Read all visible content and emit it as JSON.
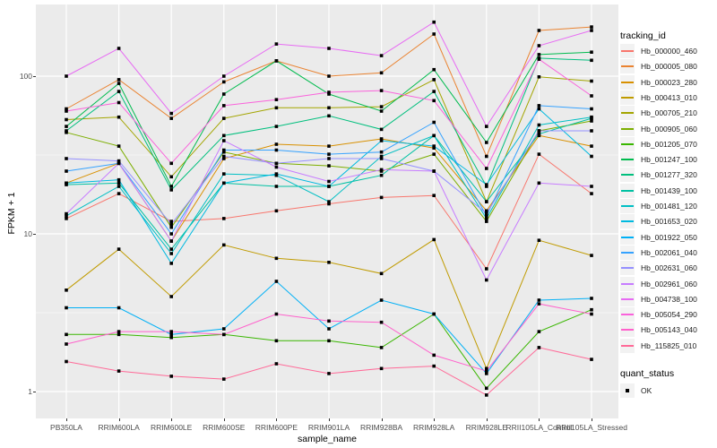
{
  "chart_data": {
    "type": "line",
    "title": "",
    "xlabel": "sample_name",
    "ylabel": "FPKM + 1",
    "y_scale": "log10",
    "ylim": [
      0.9,
      260
    ],
    "grid": {
      "visible": true,
      "major_values": [
        1,
        10,
        100
      ],
      "minor_values": [
        3.162,
        31.62
      ]
    },
    "yticks": [
      {
        "label": "1",
        "value": 1
      },
      {
        "label": "10",
        "value": 10
      },
      {
        "label": "100",
        "value": 100
      }
    ],
    "categories": [
      "PB350LA",
      "RRIM600LA",
      "RRIM600LE",
      "RRIM600SE",
      "RRIM600PE",
      "RRIM901LA",
      "RRIM928BA",
      "RRIM928LA",
      "RRIM928LE",
      "RRII105LA_Control",
      "RRII105LA_Stressed"
    ],
    "point_marker": {
      "shape": "square",
      "color": "#000000"
    },
    "series": [
      {
        "name": "Hb_000000_460",
        "color": "#F8766D",
        "values": [
          12.5,
          18,
          12,
          12.5,
          14,
          15.5,
          17,
          17.5,
          6,
          32,
          18
        ]
      },
      {
        "name": "Hb_000005_080",
        "color": "#EA8331",
        "values": [
          62,
          95,
          54,
          92,
          125,
          100,
          105,
          185,
          31,
          195,
          205
        ]
      },
      {
        "name": "Hb_000023_280",
        "color": "#D89000",
        "values": [
          21,
          28,
          9,
          30,
          37,
          36,
          40,
          35,
          14,
          42,
          36
        ]
      },
      {
        "name": "Hb_000413_010",
        "color": "#C09B00",
        "values": [
          4.4,
          8,
          4,
          8.5,
          7,
          6.6,
          5.6,
          9.2,
          1.4,
          9.1,
          7.3
        ]
      },
      {
        "name": "Hb_000705_210",
        "color": "#A3A500",
        "values": [
          53,
          55,
          23,
          54,
          63,
          63,
          64,
          95,
          16,
          99,
          93
        ]
      },
      {
        "name": "Hb_000905_060",
        "color": "#7CAE00",
        "values": [
          44,
          36,
          11,
          33,
          28,
          27,
          25,
          32,
          12,
          45,
          52
        ]
      },
      {
        "name": "Hb_001205_070",
        "color": "#39B600",
        "values": [
          2.3,
          2.3,
          2.2,
          2.3,
          2.1,
          2.1,
          1.9,
          3.1,
          1.05,
          2.4,
          3.3
        ]
      },
      {
        "name": "Hb_001247_100",
        "color": "#00BB4E",
        "values": [
          48,
          90,
          20,
          77,
          125,
          77,
          60,
          110,
          38,
          137,
          142
        ]
      },
      {
        "name": "Hb_001277_320",
        "color": "#00BF7D",
        "values": [
          45,
          80,
          19,
          42,
          48,
          56,
          46,
          80,
          20,
          130,
          126
        ]
      },
      {
        "name": "Hb_001439_100",
        "color": "#00C1A3",
        "values": [
          20.5,
          21,
          8,
          21,
          20,
          20,
          23.5,
          42,
          16,
          43,
          54
        ]
      },
      {
        "name": "Hb_001481_120",
        "color": "#00BFC4",
        "values": [
          13,
          20,
          7.5,
          24,
          23.5,
          16,
          31,
          42,
          12.5,
          49,
          55
        ]
      },
      {
        "name": "Hb_001653_020",
        "color": "#00BAE0",
        "values": [
          21,
          22,
          6.5,
          21,
          24,
          20,
          39,
          36,
          20.5,
          62,
          31
        ]
      },
      {
        "name": "Hb_001922_050",
        "color": "#00B0F6",
        "values": [
          3.4,
          3.4,
          2.3,
          2.5,
          5.0,
          2.5,
          3.8,
          3.1,
          1.3,
          3.8,
          3.9
        ]
      },
      {
        "name": "Hb_002061_040",
        "color": "#35A2FF",
        "values": [
          25,
          28,
          10,
          34,
          34,
          32,
          33,
          51,
          13,
          65,
          62
        ]
      },
      {
        "name": "Hb_002631_060",
        "color": "#9590FF",
        "values": [
          30,
          29,
          11.5,
          31,
          28,
          30,
          30,
          25,
          13.5,
          45,
          45
        ]
      },
      {
        "name": "Hb_002961_060",
        "color": "#C77CFF",
        "values": [
          13.4,
          28,
          9,
          39,
          26.5,
          21.5,
          25.5,
          25,
          5.1,
          21,
          20
        ]
      },
      {
        "name": "Hb_004738_100",
        "color": "#E76BF3",
        "values": [
          100,
          150,
          58,
          100,
          160,
          150,
          135,
          220,
          48,
          156,
          195
        ]
      },
      {
        "name": "Hb_005054_290",
        "color": "#FA62DB",
        "values": [
          60,
          68,
          28,
          65,
          71,
          79,
          81,
          70,
          26,
          128,
          75
        ]
      },
      {
        "name": "Hb_005143_040",
        "color": "#FF61CC",
        "values": [
          2.0,
          2.4,
          2.4,
          2.3,
          3.1,
          2.8,
          2.75,
          1.7,
          1.35,
          3.6,
          3.1
        ]
      },
      {
        "name": "Hb_115825_010",
        "color": "#FF6A98",
        "values": [
          1.55,
          1.35,
          1.25,
          1.2,
          1.5,
          1.3,
          1.4,
          1.45,
          0.95,
          1.9,
          1.6
        ]
      }
    ],
    "legend_position": "right"
  },
  "legend": {
    "tracking_title": "tracking_id",
    "quant_title": "quant_status",
    "quant_items": [
      {
        "label": "OK",
        "marker": "black-square"
      }
    ]
  },
  "colors": {
    "panel_background": "#EBEBEB",
    "gridline": "#FFFFFF",
    "tick_text": "#4D4D4D",
    "legend_key_background": "#F2F2F2"
  }
}
